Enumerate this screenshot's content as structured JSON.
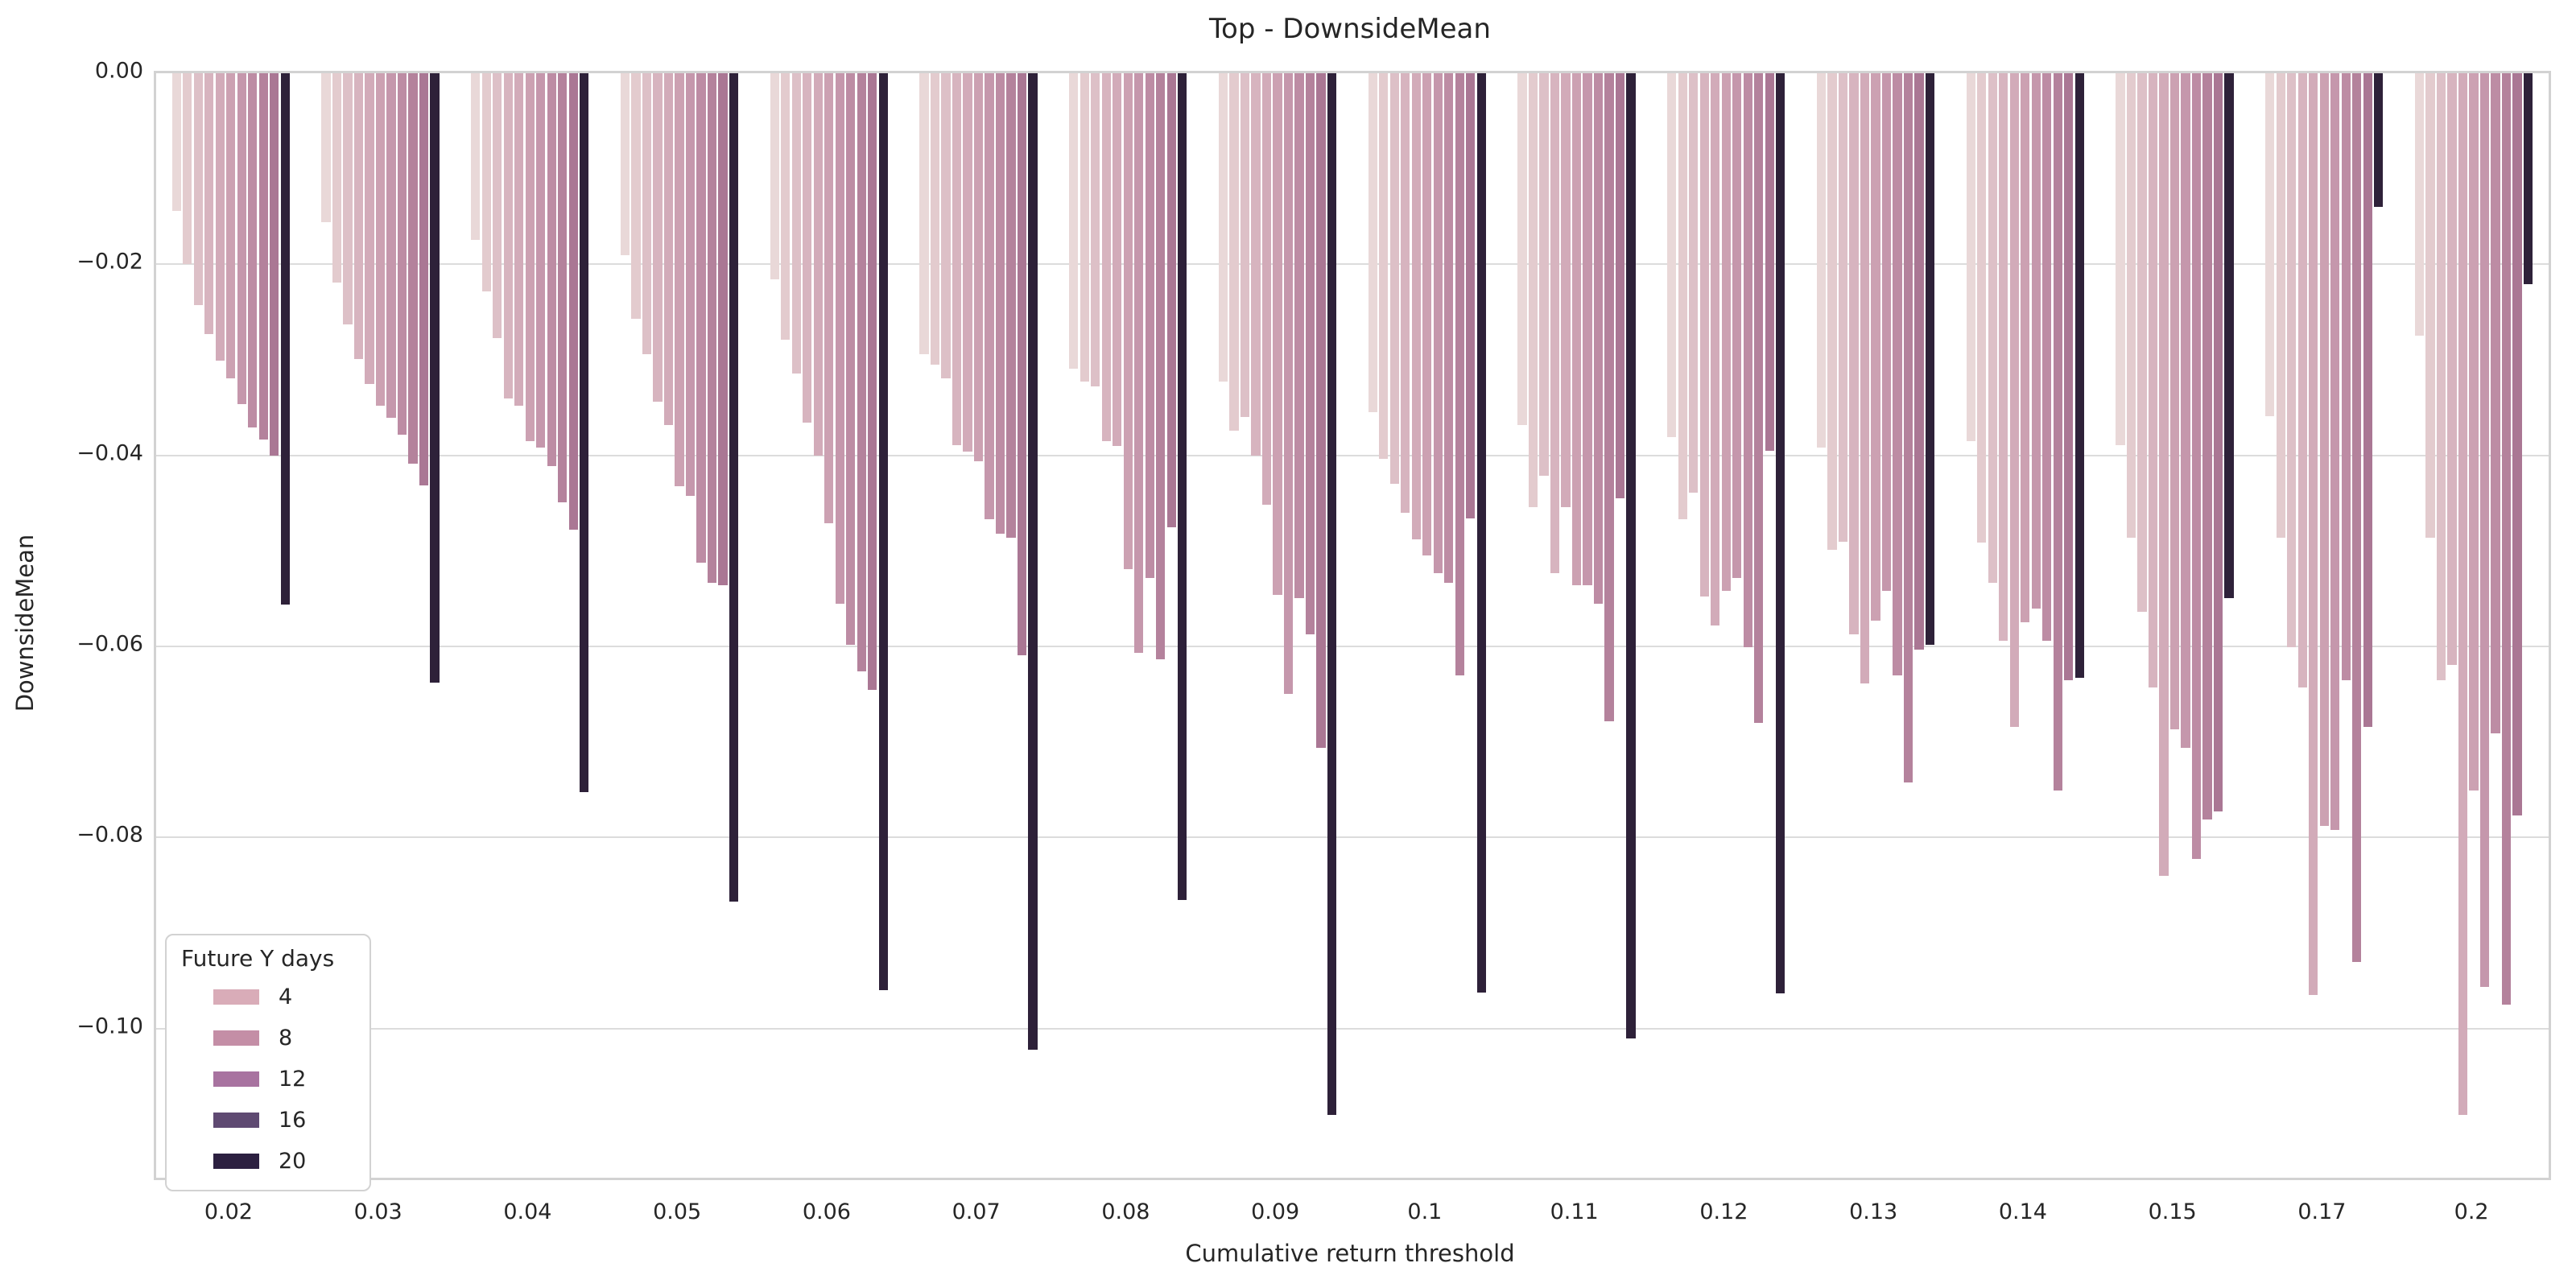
{
  "title": "Top - DownsideMean",
  "axes": {
    "xlabel": "Cumulative return threshold",
    "ylabel": "DownsideMean",
    "ytick_labels": [
      "0.00",
      "−0.02",
      "−0.04",
      "−0.06",
      "−0.08",
      "−0.10"
    ]
  },
  "legend": {
    "title": "Future Y days",
    "entries": [
      {
        "label": "4",
        "color": "#d9acb8"
      },
      {
        "label": "8",
        "color": "#c48ea6"
      },
      {
        "label": "12",
        "color": "#a873a0"
      },
      {
        "label": "16",
        "color": "#5f4a72"
      },
      {
        "label": "20",
        "color": "#2c2040"
      }
    ]
  },
  "chart_data": {
    "type": "bar",
    "title": "Top - DownsideMean",
    "xlabel": "Cumulative return threshold",
    "ylabel": "DownsideMean",
    "grid": "horizontal",
    "legend_position": "lower left",
    "legend_title": "Future Y days",
    "legend_tick_labels": [
      "4",
      "8",
      "12",
      "16",
      "20"
    ],
    "ylim": [
      -0.1156,
      0
    ],
    "ytick_values": [
      0,
      -0.02,
      -0.04,
      -0.06,
      -0.08,
      -0.1
    ],
    "categories": [
      "0.02",
      "0.03",
      "0.04",
      "0.05",
      "0.06",
      "0.07",
      "0.08",
      "0.09",
      "0.1",
      "0.11",
      "0.12",
      "0.13",
      "0.14",
      "0.15",
      "0.17",
      "0.2"
    ],
    "series": [
      {
        "name": "bar-01",
        "color": "#e9d8d8",
        "values": [
          -0.0144,
          -0.0156,
          -0.0174,
          -0.019,
          -0.0216,
          -0.0294,
          -0.0309,
          -0.0323,
          -0.0355,
          -0.0368,
          -0.0381,
          -0.0392,
          -0.0385,
          -0.0389,
          -0.0359,
          -0.0275
        ]
      },
      {
        "name": "bar-02",
        "color": "#e3cbce",
        "values": [
          -0.02,
          -0.0219,
          -0.0228,
          -0.0257,
          -0.0279,
          -0.0305,
          -0.0323,
          -0.0374,
          -0.0404,
          -0.0454,
          -0.0467,
          -0.0499,
          -0.0491,
          -0.0486,
          -0.0486,
          -0.0486
        ]
      },
      {
        "name": "bar-03",
        "color": "#ddc0c7",
        "values": [
          -0.0243,
          -0.0263,
          -0.0277,
          -0.0294,
          -0.0314,
          -0.0319,
          -0.0328,
          -0.036,
          -0.043,
          -0.0421,
          -0.0439,
          -0.049,
          -0.0533,
          -0.0564,
          -0.0601,
          -0.0635
        ]
      },
      {
        "name": "bar-04",
        "color": "#d7b4bf",
        "values": [
          -0.0273,
          -0.0299,
          -0.034,
          -0.0344,
          -0.0366,
          -0.0389,
          -0.0385,
          -0.04,
          -0.046,
          -0.0523,
          -0.0548,
          -0.0587,
          -0.0594,
          -0.0643,
          -0.0643,
          -0.0619
        ]
      },
      {
        "name": "bar-05",
        "color": "#d2abb9",
        "values": [
          -0.0301,
          -0.0325,
          -0.0348,
          -0.0368,
          -0.04,
          -0.0396,
          -0.039,
          -0.0452,
          -0.0488,
          -0.0454,
          -0.0578,
          -0.0639,
          -0.0684,
          -0.084,
          -0.0965,
          -0.109
        ]
      },
      {
        "name": "bar-06",
        "color": "#cca1b2",
        "values": [
          -0.0319,
          -0.0348,
          -0.0385,
          -0.0432,
          -0.0471,
          -0.0406,
          -0.0519,
          -0.0546,
          -0.0505,
          -0.0536,
          -0.0542,
          -0.0573,
          -0.0575,
          -0.0687,
          -0.0788,
          -0.0751
        ]
      },
      {
        "name": "bar-07",
        "color": "#c597ac",
        "values": [
          -0.0346,
          -0.0361,
          -0.0392,
          -0.0442,
          -0.0555,
          -0.0467,
          -0.0607,
          -0.065,
          -0.0523,
          -0.0536,
          -0.0528,
          -0.0542,
          -0.056,
          -0.0706,
          -0.0792,
          -0.0956
        ]
      },
      {
        "name": "bar-08",
        "color": "#bd8ca4",
        "values": [
          -0.0371,
          -0.0378,
          -0.0411,
          -0.0512,
          -0.0598,
          -0.0482,
          -0.0528,
          -0.0549,
          -0.0533,
          -0.0555,
          -0.0601,
          -0.063,
          -0.0594,
          -0.0822,
          -0.0635,
          -0.0691
        ]
      },
      {
        "name": "bar-09",
        "color": "#b4829c",
        "values": [
          -0.0383,
          -0.0409,
          -0.0449,
          -0.0533,
          -0.0626,
          -0.0486,
          -0.0613,
          -0.0587,
          -0.063,
          -0.0678,
          -0.068,
          -0.0742,
          -0.0751,
          -0.0781,
          -0.093,
          -0.0975
        ]
      },
      {
        "name": "bar-10",
        "color": "#aa7794",
        "values": [
          -0.04,
          -0.0431,
          -0.0478,
          -0.0536,
          -0.0645,
          -0.0609,
          -0.0475,
          -0.0706,
          -0.0466,
          -0.0445,
          -0.0395,
          -0.0603,
          -0.0635,
          -0.0773,
          -0.0684,
          -0.0777
        ]
      },
      {
        "name": "bar-11",
        "color": "#2e2139",
        "values": [
          -0.0556,
          -0.0638,
          -0.0752,
          -0.0867,
          -0.096,
          -0.1022,
          -0.0865,
          -0.109,
          -0.0962,
          -0.101,
          -0.0963,
          -0.0598,
          -0.0633,
          -0.0549,
          -0.014,
          -0.0221
        ]
      }
    ]
  }
}
